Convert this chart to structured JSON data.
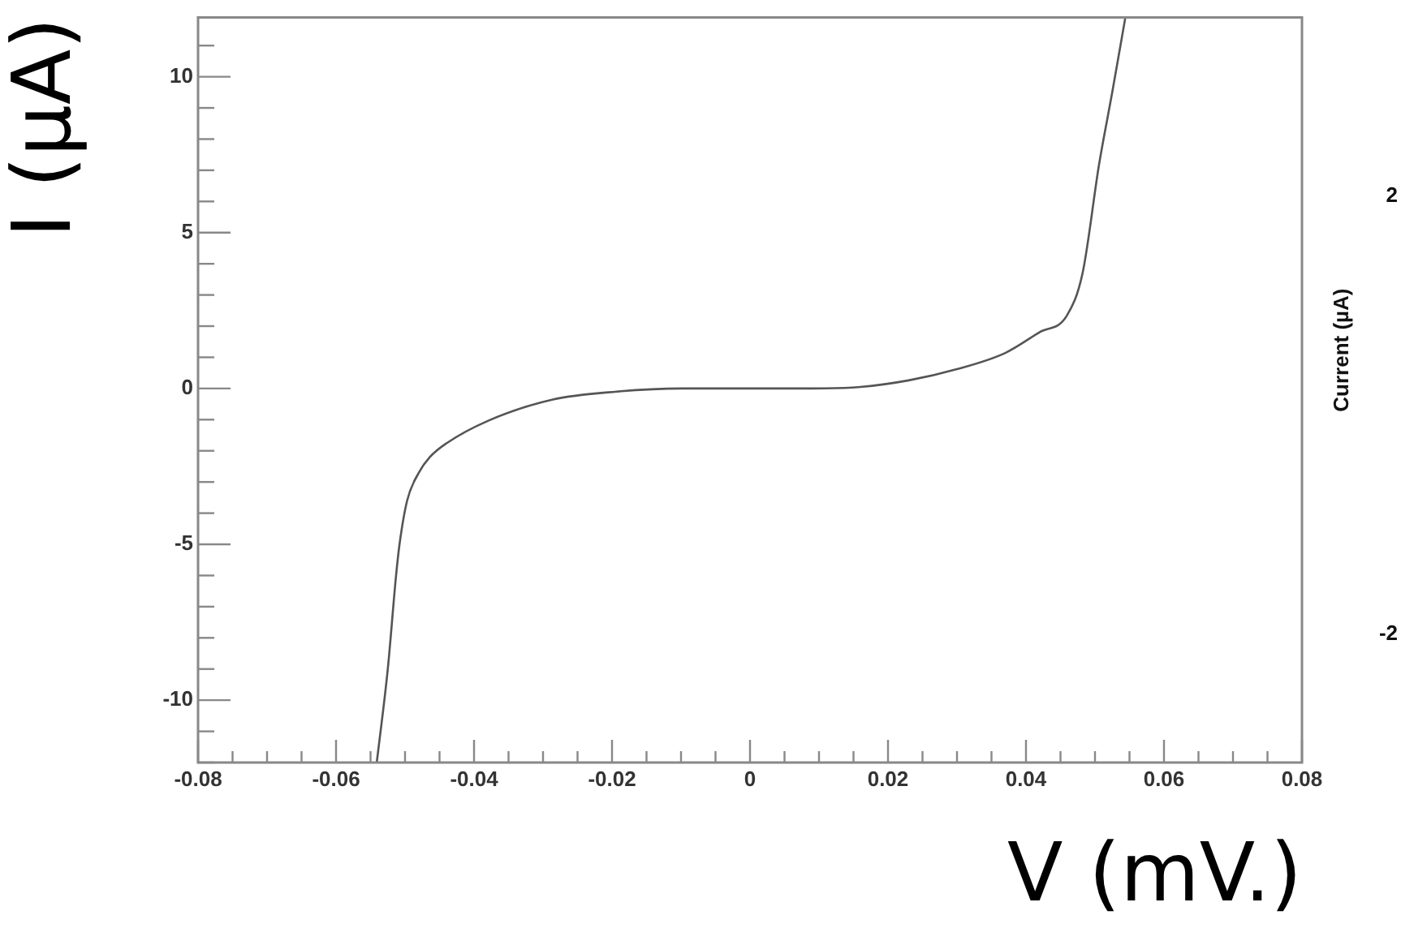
{
  "chart_data": {
    "type": "line",
    "xlabel": "V (mV.)",
    "ylabel": "I (µA)",
    "x": [
      -0.0541,
      -0.0525,
      -0.0513,
      -0.0508,
      -0.0497,
      -0.048,
      -0.0464,
      -0.044,
      -0.038,
      -0.0287,
      -0.0193,
      -0.0099,
      0,
      0.0089,
      0.016,
      0.023,
      0.03,
      0.037,
      0.042,
      0.0459,
      0.0482,
      0.0506,
      0.0525,
      0.0544
    ],
    "series": [
      {
        "color": "#555555",
        "values": [
          -12,
          -9,
          -6,
          -5,
          -3.6,
          -2.7,
          -2.2,
          -1.76,
          -1.04,
          -0.36,
          -0.1,
          0,
          0,
          0,
          0.05,
          0.26,
          0.62,
          1.14,
          1.81,
          2.33,
          3.7,
          7.2,
          9.5,
          11.9
        ]
      }
    ],
    "xlim": [
      -0.08,
      0.08
    ],
    "ylim": [
      -12,
      11.9
    ],
    "xticks": [
      -0.08,
      {
        "value": -0.075,
        "label": null
      },
      {
        "value": -0.07,
        "label": null
      },
      {
        "value": -0.065,
        "label": null
      },
      -0.06,
      {
        "value": -0.055,
        "label": null
      },
      {
        "value": -0.05,
        "label": null
      },
      {
        "value": -0.045,
        "label": null
      },
      -0.04,
      {
        "value": -0.035,
        "label": null
      },
      {
        "value": -0.03,
        "label": null
      },
      {
        "value": -0.025,
        "label": null
      },
      -0.02,
      {
        "value": -0.015,
        "label": null
      },
      {
        "value": -0.01,
        "label": null
      },
      {
        "value": -0.005,
        "label": null
      },
      0,
      {
        "value": 0.005,
        "label": null
      },
      {
        "value": 0.01,
        "label": null
      },
      {
        "value": 0.015,
        "label": null
      },
      0.02,
      {
        "value": 0.025,
        "label": null
      },
      {
        "value": 0.03,
        "label": null
      },
      {
        "value": 0.035,
        "label": null
      },
      0.04,
      {
        "value": 0.045,
        "label": null
      },
      {
        "value": 0.05,
        "label": null
      },
      {
        "value": 0.055,
        "label": null
      },
      0.06,
      {
        "value": 0.065,
        "label": null
      },
      {
        "value": 0.07,
        "label": null
      },
      {
        "value": 0.075,
        "label": null
      },
      0.08
    ],
    "yticks": [
      {
        "value": -12,
        "label": null
      },
      {
        "value": -11,
        "label": null
      },
      -10,
      {
        "value": -9,
        "label": null
      },
      {
        "value": -8,
        "label": null
      },
      {
        "value": -7,
        "label": null
      },
      {
        "value": -6,
        "label": null
      },
      -5,
      {
        "value": -4,
        "label": null
      },
      {
        "value": -3,
        "label": null
      },
      {
        "value": -2,
        "label": null
      },
      {
        "value": -1,
        "label": null
      },
      0,
      {
        "value": 1,
        "label": null
      },
      {
        "value": 2,
        "label": null
      },
      {
        "value": 3,
        "label": null
      },
      {
        "value": 4,
        "label": null
      },
      5,
      {
        "value": 6,
        "label": null
      },
      {
        "value": 7,
        "label": null
      },
      {
        "value": 8,
        "label": null
      },
      {
        "value": 9,
        "label": null
      },
      10,
      {
        "value": 11,
        "label": null
      }
    ],
    "grid": false,
    "legend": false,
    "marker": "none",
    "line_style": "solid",
    "annotations": [
      "Current (µA)",
      "2",
      "-2"
    ]
  }
}
